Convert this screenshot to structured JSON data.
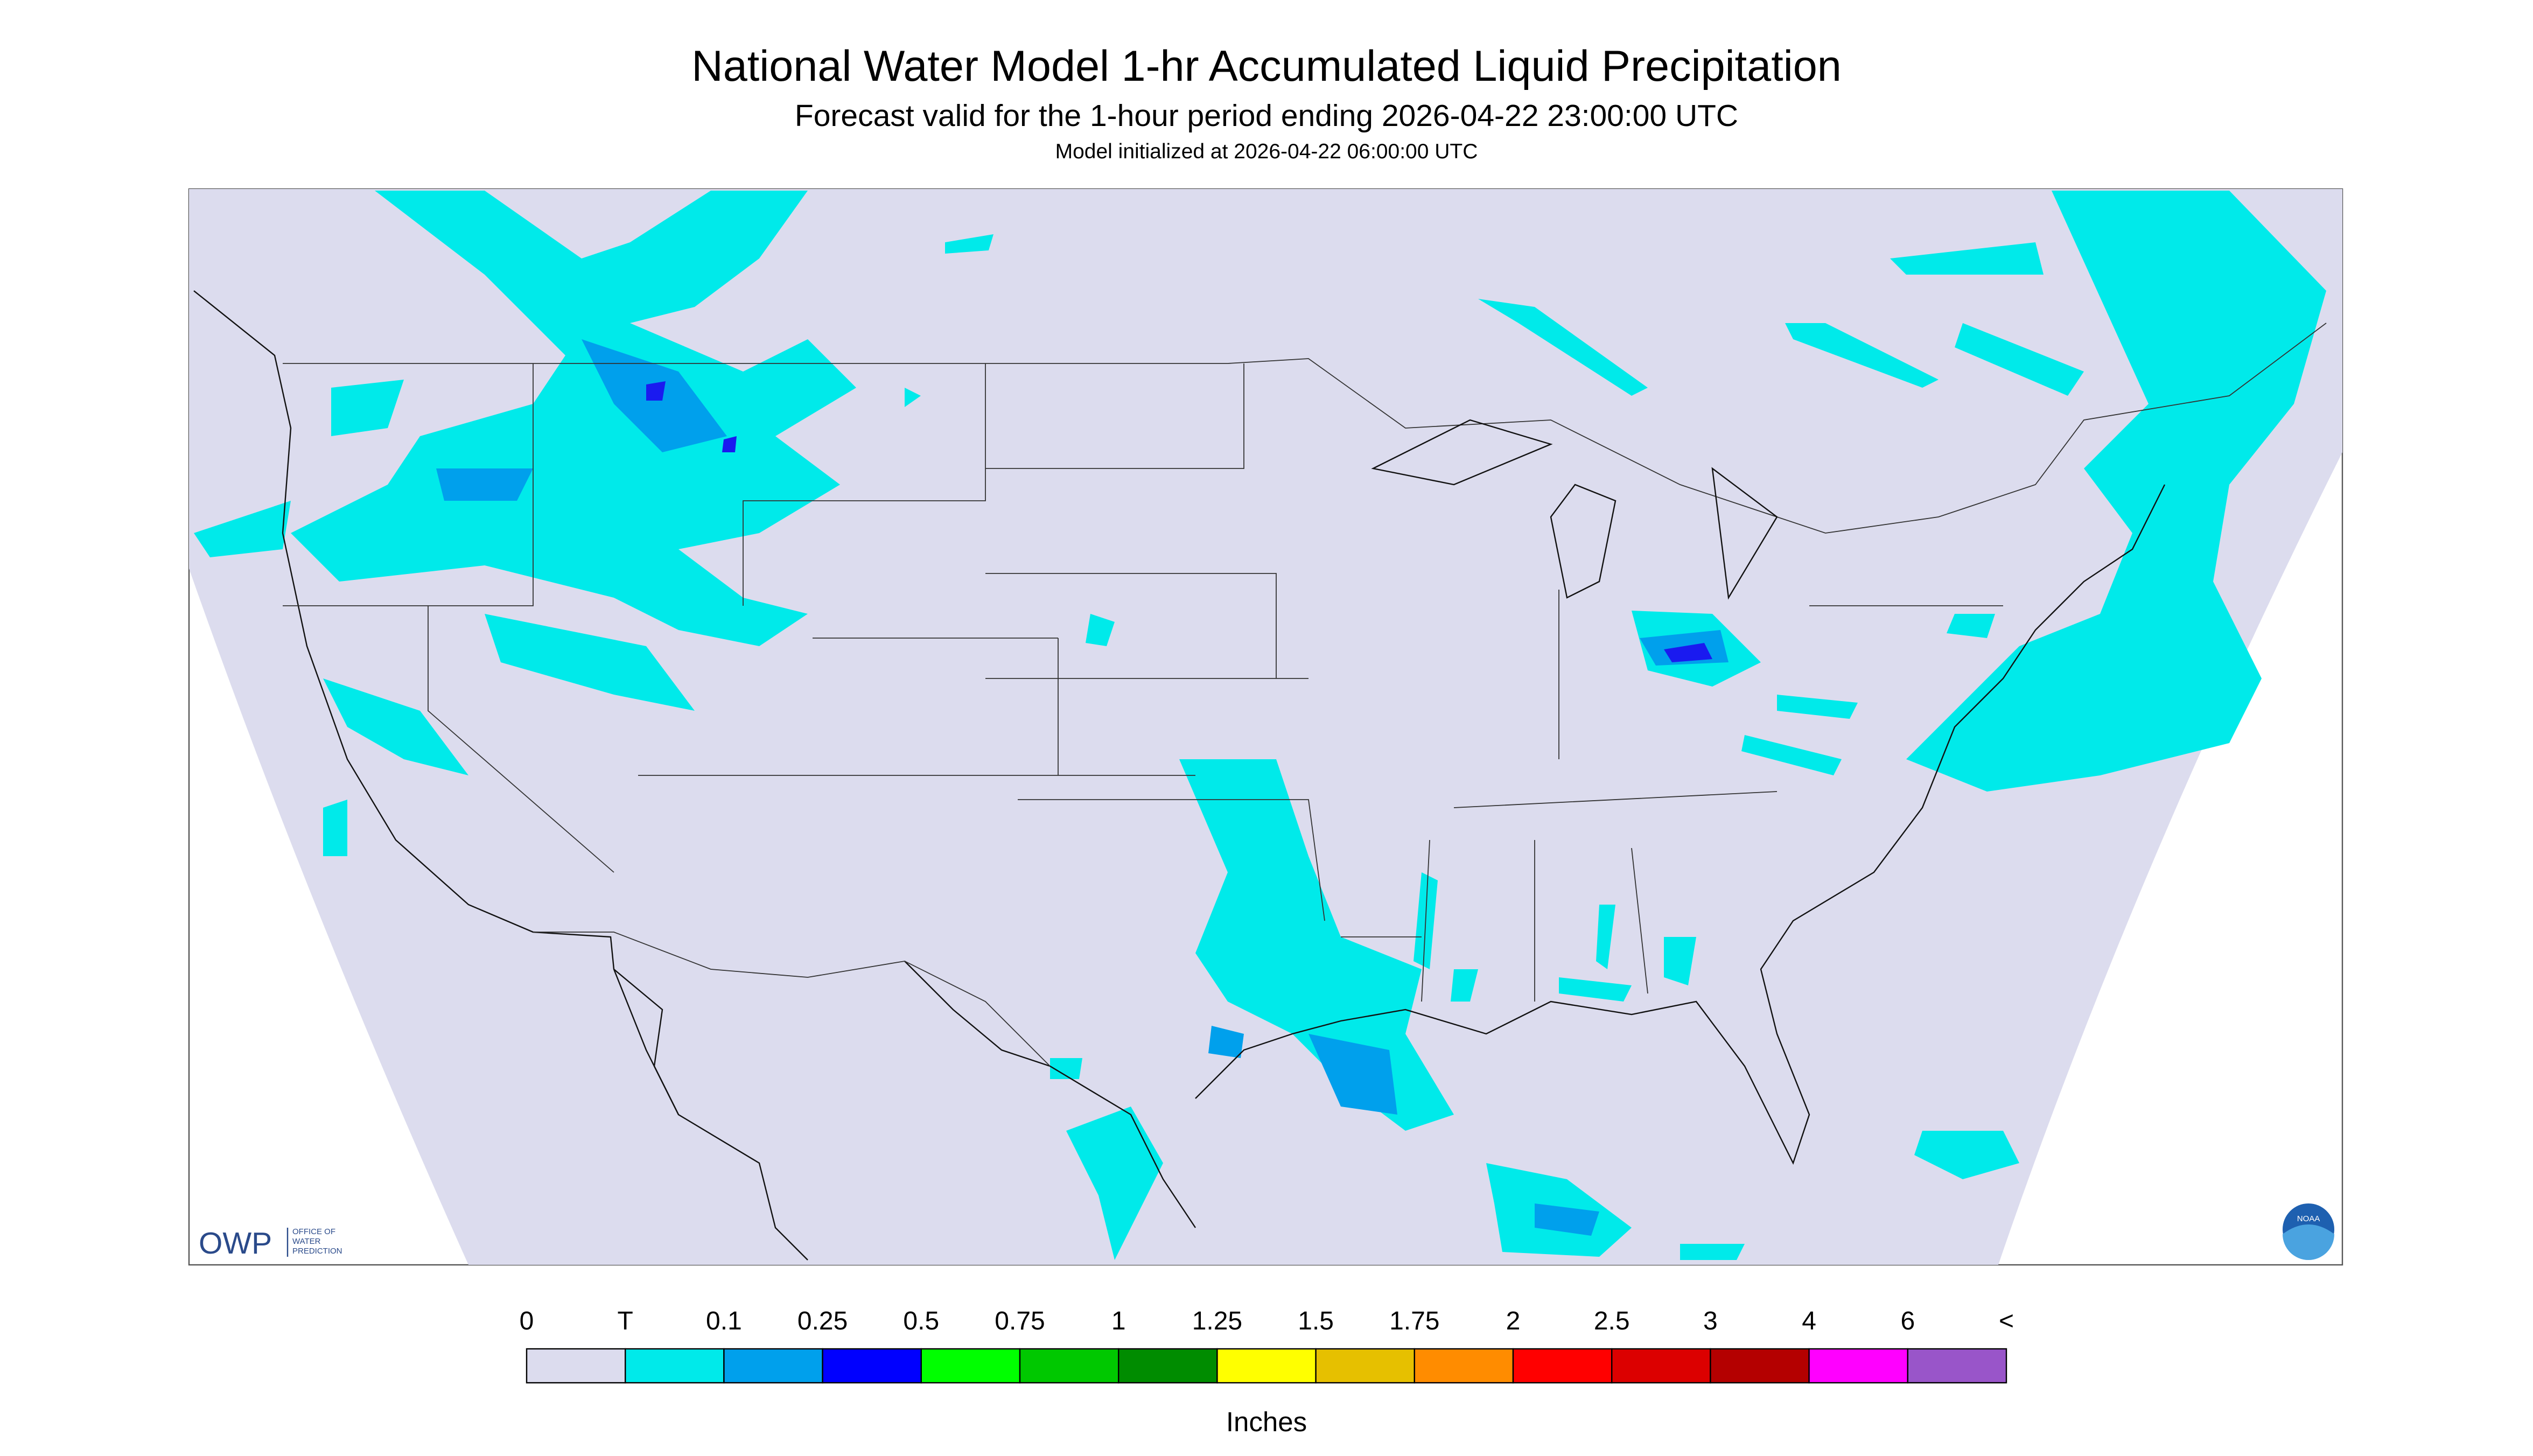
{
  "header": {
    "title": "National Water Model 1-hr Accumulated Liquid Precipitation",
    "subtitle": "Forecast valid for the 1-hour period ending 2026-04-22 23:00:00 UTC",
    "init": "Model initialized at 2026-04-22 06:00:00 UTC"
  },
  "logos": {
    "owp": "OWP",
    "owp_name": [
      "OFFICE OF",
      "WATER",
      "PREDICTION"
    ],
    "noaa": "NOAA"
  },
  "legend": {
    "labels": [
      "0",
      "T",
      "0.1",
      "0.25",
      "0.5",
      "0.75",
      "1",
      "1.25",
      "1.5",
      "1.75",
      "2",
      "2.5",
      "3",
      "4",
      "6",
      "<"
    ],
    "colors": [
      "#dcdcee",
      "#00eaea",
      "#00a0ec",
      "#0000ff",
      "#00ff00",
      "#00c800",
      "#008c00",
      "#ffff00",
      "#e6c000",
      "#ff8c00",
      "#ff0000",
      "#dc0000",
      "#b40000",
      "#ff00ff",
      "#9955c9"
    ],
    "unit": "Inches"
  }
}
